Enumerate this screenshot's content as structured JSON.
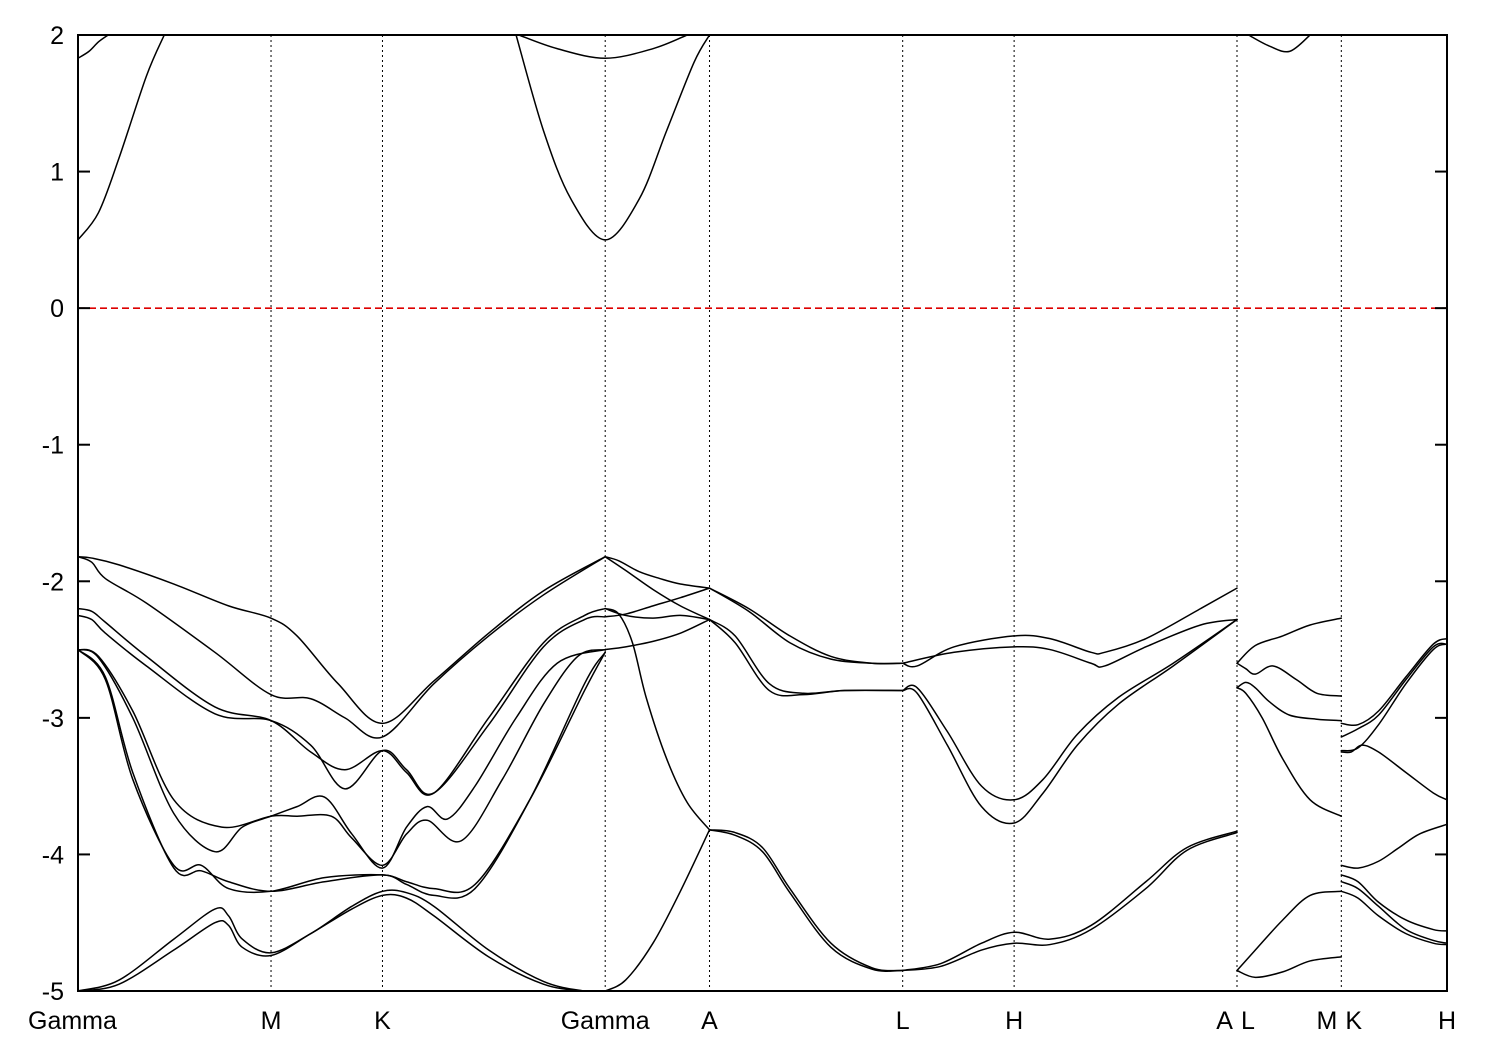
{
  "chart_data": {
    "type": "line",
    "title": "",
    "xlabel": "",
    "ylabel": "",
    "ylim": [
      -5,
      2
    ],
    "xlim": [
      0,
      100
    ],
    "y_ticks": [
      "2",
      "1",
      "0",
      "-1",
      "-2",
      "-3",
      "-4",
      "-5"
    ],
    "y_tick_values": [
      2,
      1,
      0,
      -1,
      -2,
      -3,
      -4,
      -5
    ],
    "kpoints": [
      {
        "label": "Gamma",
        "x": 0
      },
      {
        "label": "M",
        "x": 14.1
      },
      {
        "label": "K",
        "x": 22.24
      },
      {
        "label": "Gamma",
        "x": 38.51
      },
      {
        "label": "A",
        "x": 46.13
      },
      {
        "label": "L",
        "x": 60.24
      },
      {
        "label": "H",
        "x": 68.38
      },
      {
        "label": "A",
        "x": 84.66
      },
      {
        "label": "L",
        "x": 84.66
      },
      {
        "label": "M",
        "x": 92.28
      },
      {
        "label": "K",
        "x": 92.28
      },
      {
        "label": "H",
        "x": 100
      }
    ],
    "kpoint_label_text": [
      "Gamma",
      "M",
      "K",
      "Gamma",
      "A",
      "L",
      "H",
      "A",
      "L",
      "M",
      "K",
      "H"
    ],
    "fermi_level": 0,
    "fermi_color": "#dd0000",
    "band_color": "#000000",
    "grid": false,
    "series": [
      {
        "x": [
          0,
          1.5,
          3,
          5,
          6.3
        ],
        "y": [
          0.5,
          0.7,
          1.1,
          1.7,
          2.0
        ]
      },
      {
        "x": [
          0,
          0.8,
          1.5,
          2.2
        ],
        "y": [
          1.83,
          1.88,
          1.95,
          2.0
        ]
      },
      {
        "x": [
          32,
          34,
          36,
          38.51,
          41,
          43,
          45,
          46.13
        ],
        "y": [
          2.0,
          1.3,
          0.8,
          0.5,
          0.8,
          1.3,
          1.8,
          2.0
        ]
      },
      {
        "x": [
          32.2,
          35,
          38.51,
          42,
          44.5
        ],
        "y": [
          2.0,
          1.9,
          1.83,
          1.9,
          2.0
        ]
      },
      {
        "x": [
          85.5,
          87,
          88.5,
          90
        ],
        "y": [
          2.0,
          1.92,
          1.88,
          2.0
        ]
      },
      {
        "x": [
          0,
          1,
          3,
          7,
          11,
          14.1,
          16,
          19,
          22.24,
          26,
          30,
          34,
          38.51
        ],
        "y": [
          -1.82,
          -1.83,
          -1.88,
          -2.02,
          -2.18,
          -2.27,
          -2.4,
          -2.75,
          -3.04,
          -2.73,
          -2.38,
          -2.07,
          -1.82
        ]
      },
      {
        "x": [
          0,
          1,
          2,
          5,
          10,
          14.1,
          17,
          19.5,
          22.24,
          26,
          30,
          34,
          38.51
        ],
        "y": [
          -1.82,
          -1.86,
          -1.98,
          -2.16,
          -2.52,
          -2.83,
          -2.86,
          -3.0,
          -3.14,
          -2.75,
          -2.4,
          -2.1,
          -1.82
        ]
      },
      {
        "x": [
          0,
          1,
          2,
          5,
          10,
          14.1,
          17,
          19.5,
          22.24,
          24,
          26,
          30,
          34,
          37,
          38.51
        ],
        "y": [
          -2.2,
          -2.22,
          -2.3,
          -2.55,
          -2.92,
          -3.02,
          -3.25,
          -3.38,
          -3.24,
          -3.4,
          -3.55,
          -3.0,
          -2.45,
          -2.25,
          -2.2
        ]
      },
      {
        "x": [
          0,
          1,
          2,
          5,
          10,
          14.1,
          17,
          19.5,
          22.24,
          24,
          26,
          30,
          34,
          37,
          38.51
        ],
        "y": [
          -2.25,
          -2.28,
          -2.38,
          -2.62,
          -2.97,
          -3.02,
          -3.2,
          -3.52,
          -3.24,
          -3.38,
          -3.55,
          -3.05,
          -2.48,
          -2.28,
          -2.26
        ]
      },
      {
        "x": [
          0,
          1.5,
          4,
          7,
          10.5,
          14.1,
          16,
          18.5,
          20,
          22.24,
          24,
          25.5,
          28,
          31,
          34,
          36.5,
          38.51
        ],
        "y": [
          -2.5,
          -2.55,
          -2.95,
          -3.6,
          -3.8,
          -3.72,
          -3.72,
          -3.72,
          -3.88,
          -4.08,
          -3.85,
          -3.75,
          -3.9,
          -3.45,
          -2.9,
          -2.55,
          -2.5
        ]
      },
      {
        "x": [
          0,
          1.5,
          4,
          7,
          10,
          12,
          14.1,
          16,
          18,
          20,
          22.24,
          24,
          25.5,
          27,
          29,
          32,
          35,
          38.51
        ],
        "y": [
          -2.5,
          -2.56,
          -3.0,
          -3.7,
          -3.98,
          -3.8,
          -3.72,
          -3.65,
          -3.58,
          -3.85,
          -4.1,
          -3.8,
          -3.65,
          -3.74,
          -3.5,
          -3.0,
          -2.6,
          -2.5
        ]
      },
      {
        "x": [
          0,
          2,
          4,
          7,
          9,
          11,
          14.1,
          18,
          22.24,
          24,
          26,
          29,
          33,
          37,
          38.51
        ],
        "y": [
          -2.5,
          -2.7,
          -3.4,
          -4.1,
          -4.12,
          -4.2,
          -4.27,
          -4.2,
          -4.15,
          -4.22,
          -4.3,
          -4.25,
          -3.6,
          -2.75,
          -2.52
        ]
      },
      {
        "x": [
          0,
          2,
          4,
          7,
          9,
          11,
          14.1,
          18,
          22.24,
          24,
          26,
          29,
          33,
          37,
          38.51
        ],
        "y": [
          -2.5,
          -2.72,
          -3.45,
          -4.08,
          -4.08,
          -4.25,
          -4.27,
          -4.17,
          -4.15,
          -4.2,
          -4.25,
          -4.22,
          -3.6,
          -2.8,
          -2.52
        ]
      },
      {
        "x": [
          0,
          3,
          7,
          10,
          11,
          12,
          14.1,
          17,
          20,
          22.24,
          24,
          26,
          30,
          34,
          37,
          38.51
        ],
        "y": [
          -5.0,
          -4.92,
          -4.62,
          -4.4,
          -4.45,
          -4.62,
          -4.72,
          -4.58,
          -4.38,
          -4.27,
          -4.28,
          -4.38,
          -4.7,
          -4.93,
          -5.0,
          -5.0
        ]
      },
      {
        "x": [
          0,
          3,
          7,
          10,
          11,
          12,
          14.1,
          17,
          20,
          22.24,
          24,
          26,
          30,
          34,
          37,
          38.51
        ],
        "y": [
          -5.0,
          -4.95,
          -4.7,
          -4.5,
          -4.52,
          -4.68,
          -4.74,
          -4.58,
          -4.4,
          -4.3,
          -4.32,
          -4.45,
          -4.75,
          -4.95,
          -5.0,
          -5.0
        ]
      },
      {
        "x": [
          38.51,
          39.5,
          41,
          42.5,
          44,
          46.13
        ],
        "y": [
          -1.82,
          -1.85,
          -1.93,
          -1.98,
          -2.02,
          -2.05
        ]
      },
      {
        "x": [
          38.51,
          40,
          42,
          44,
          46.13
        ],
        "y": [
          -1.82,
          -1.92,
          -2.06,
          -2.18,
          -2.28
        ]
      },
      {
        "x": [
          38.51,
          40,
          42,
          44,
          46.13
        ],
        "y": [
          -2.2,
          -2.25,
          -2.27,
          -2.25,
          -2.28
        ]
      },
      {
        "x": [
          38.51,
          40,
          42,
          44,
          46.13
        ],
        "y": [
          -2.26,
          -2.24,
          -2.18,
          -2.12,
          -2.05
        ]
      },
      {
        "x": [
          38.51,
          40,
          42,
          44,
          46.13
        ],
        "y": [
          -2.5,
          -2.48,
          -2.44,
          -2.38,
          -2.28
        ]
      },
      {
        "x": [
          38.51,
          39.5,
          40.5,
          41.5,
          43,
          44.5,
          46.13
        ],
        "y": [
          -2.2,
          -2.24,
          -2.45,
          -2.85,
          -3.3,
          -3.62,
          -3.82
        ]
      },
      {
        "x": [
          38.51,
          40,
          42,
          44,
          46.13
        ],
        "y": [
          -5.0,
          -4.92,
          -4.65,
          -4.27,
          -3.82
        ]
      },
      {
        "x": [
          46.13,
          49,
          52,
          55,
          58,
          60.24
        ],
        "y": [
          -2.05,
          -2.2,
          -2.4,
          -2.55,
          -2.6,
          -2.6
        ]
      },
      {
        "x": [
          46.13,
          49,
          52,
          55,
          58,
          60.24
        ],
        "y": [
          -2.05,
          -2.22,
          -2.45,
          -2.57,
          -2.6,
          -2.6
        ]
      },
      {
        "x": [
          46.13,
          48,
          50.5,
          53,
          56,
          60.24
        ],
        "y": [
          -2.28,
          -2.4,
          -2.75,
          -2.82,
          -2.8,
          -2.8
        ]
      },
      {
        "x": [
          46.13,
          48,
          50.5,
          53,
          56,
          60.24
        ],
        "y": [
          -2.28,
          -2.45,
          -2.8,
          -2.83,
          -2.8,
          -2.8
        ]
      },
      {
        "x": [
          46.13,
          48,
          50,
          52,
          55,
          58,
          60.24
        ],
        "y": [
          -3.82,
          -3.84,
          -3.95,
          -4.25,
          -4.65,
          -4.83,
          -4.85
        ]
      },
      {
        "x": [
          46.13,
          48,
          50,
          52,
          55,
          58,
          60.24
        ],
        "y": [
          -3.82,
          -3.86,
          -3.98,
          -4.28,
          -4.68,
          -4.84,
          -4.85
        ]
      },
      {
        "x": [
          60.24,
          61.3,
          64,
          68.38,
          71,
          74,
          75,
          78,
          82,
          84.66
        ],
        "y": [
          -2.6,
          -2.62,
          -2.48,
          -2.4,
          -2.42,
          -2.52,
          -2.52,
          -2.42,
          -2.2,
          -2.05
        ]
      },
      {
        "x": [
          60.24,
          64,
          68.38,
          71,
          74,
          75,
          78,
          82,
          84.66
        ],
        "y": [
          -2.6,
          -2.52,
          -2.48,
          -2.5,
          -2.6,
          -2.62,
          -2.48,
          -2.32,
          -2.28
        ]
      },
      {
        "x": [
          60.24,
          61.3,
          63.5,
          66,
          68.38,
          70.5,
          73,
          76,
          80,
          84.66
        ],
        "y": [
          -2.8,
          -2.78,
          -3.1,
          -3.5,
          -3.6,
          -3.45,
          -3.12,
          -2.85,
          -2.6,
          -2.28
        ]
      },
      {
        "x": [
          60.24,
          61.3,
          63.5,
          66,
          68.38,
          70.5,
          73,
          76,
          80,
          84.66
        ],
        "y": [
          -2.8,
          -2.82,
          -3.2,
          -3.65,
          -3.77,
          -3.55,
          -3.2,
          -2.9,
          -2.62,
          -2.28
        ]
      },
      {
        "x": [
          60.24,
          63,
          66,
          68.38,
          71,
          74,
          78,
          81,
          84.66
        ],
        "y": [
          -4.85,
          -4.8,
          -4.65,
          -4.57,
          -4.62,
          -4.52,
          -4.2,
          -3.95,
          -3.83
        ]
      },
      {
        "x": [
          60.24,
          63,
          66,
          68.38,
          71,
          74,
          78,
          81,
          84.66
        ],
        "y": [
          -4.85,
          -4.82,
          -4.7,
          -4.65,
          -4.66,
          -4.55,
          -4.25,
          -3.97,
          -3.84
        ]
      },
      {
        "x": [
          84.66,
          86,
          88,
          90,
          92.28
        ],
        "y": [
          -2.6,
          -2.47,
          -2.4,
          -2.32,
          -2.27
        ]
      },
      {
        "x": [
          84.66,
          85.3,
          86,
          87.3,
          89,
          90.5,
          92.28
        ],
        "y": [
          -2.6,
          -2.64,
          -2.68,
          -2.62,
          -2.72,
          -2.82,
          -2.84
        ]
      },
      {
        "x": [
          84.66,
          85.3,
          86,
          87,
          88.5,
          90.5,
          92.28
        ],
        "y": [
          -2.78,
          -2.74,
          -2.78,
          -2.88,
          -2.98,
          -3.01,
          -3.02
        ]
      },
      {
        "x": [
          84.66,
          85.3,
          86.5,
          88,
          90,
          92.28
        ],
        "y": [
          -2.78,
          -2.82,
          -3.0,
          -3.3,
          -3.6,
          -3.72
        ]
      },
      {
        "x": [
          84.66,
          86,
          88,
          90,
          92.28
        ],
        "y": [
          -4.85,
          -4.7,
          -4.48,
          -4.3,
          -4.27
        ]
      },
      {
        "x": [
          84.66,
          86,
          88,
          90,
          92.28
        ],
        "y": [
          -4.85,
          -4.9,
          -4.86,
          -4.78,
          -4.75
        ]
      },
      {
        "x": [
          92.28,
          93.5,
          95,
          97,
          99,
          100
        ],
        "y": [
          -3.04,
          -3.05,
          -2.95,
          -2.7,
          -2.46,
          -2.42
        ]
      },
      {
        "x": [
          92.28,
          93.5,
          95,
          97,
          99,
          100
        ],
        "y": [
          -3.14,
          -3.08,
          -2.98,
          -2.72,
          -2.48,
          -2.46
        ]
      },
      {
        "x": [
          92.28,
          93.5,
          95,
          97,
          99,
          100
        ],
        "y": [
          -3.24,
          -3.22,
          -3.05,
          -2.75,
          -2.5,
          -2.46
        ]
      },
      {
        "x": [
          92.28,
          93,
          93.8,
          95,
          97,
          99,
          100
        ],
        "y": [
          -3.25,
          -3.25,
          -3.2,
          -3.25,
          -3.4,
          -3.55,
          -3.6
        ]
      },
      {
        "x": [
          92.28,
          93.5,
          95,
          96.5,
          98,
          100
        ],
        "y": [
          -4.08,
          -4.1,
          -4.05,
          -3.95,
          -3.85,
          -3.78
        ]
      },
      {
        "x": [
          92.28,
          93.5,
          95,
          97,
          99,
          100
        ],
        "y": [
          -4.15,
          -4.2,
          -4.35,
          -4.48,
          -4.55,
          -4.56
        ]
      },
      {
        "x": [
          92.28,
          93.5,
          95,
          97,
          99,
          100
        ],
        "y": [
          -4.2,
          -4.25,
          -4.38,
          -4.55,
          -4.63,
          -4.65
        ]
      },
      {
        "x": [
          92.28,
          93.5,
          95,
          97,
          99,
          100
        ],
        "y": [
          -4.27,
          -4.32,
          -4.45,
          -4.58,
          -4.65,
          -4.66
        ]
      }
    ]
  }
}
